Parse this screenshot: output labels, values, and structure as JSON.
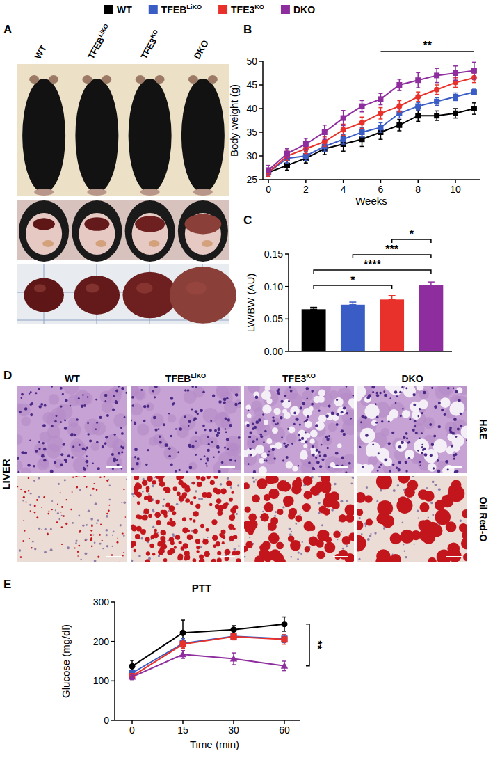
{
  "panels": [
    "A",
    "B",
    "C",
    "D",
    "E"
  ],
  "legend": [
    {
      "text": "WT",
      "color": "#000000"
    },
    {
      "text": "TFEB",
      "sup": "LiKO",
      "color": "#3a5cc5"
    },
    {
      "text": "TFE3",
      "sup": "KO",
      "color": "#e8312a"
    },
    {
      "text": "DKO",
      "color": "#8e2e9e"
    }
  ],
  "panel_a": {
    "columns": [
      {
        "text": "WT"
      },
      {
        "text": "TFEB",
        "sup": "LiKO"
      },
      {
        "text": "TFE3",
        "sup": "KO"
      },
      {
        "text": "DKO"
      }
    ]
  },
  "panel_d": {
    "tissue": "LIVER",
    "rows": [
      "H&E",
      "Oil Red-O"
    ],
    "columns": [
      {
        "text": "WT"
      },
      {
        "text": "TFEB",
        "sup": "LiKO"
      },
      {
        "text": "TFE3",
        "sup": "KO"
      },
      {
        "text": "DKO"
      }
    ]
  },
  "chart_data": [
    {
      "type": "line",
      "x_label": "Weeks",
      "y_label": "Body weight (g)",
      "x": [
        0,
        1,
        2,
        3,
        4,
        5,
        6,
        7,
        8,
        9,
        10,
        11
      ],
      "xlim": [
        -0.3,
        11.3
      ],
      "xticks": [
        0,
        2,
        4,
        6,
        8,
        10
      ],
      "ylim": [
        25,
        50
      ],
      "yticks": [
        25,
        30,
        35,
        40,
        45,
        50
      ],
      "series": [
        {
          "color": "#000000",
          "marker": "square",
          "values": [
            26.5,
            28,
            29.5,
            31.5,
            32.5,
            33.5,
            35,
            36.5,
            38.5,
            38.5,
            39,
            40
          ],
          "errors": [
            0.8,
            1,
            1,
            1.2,
            1.5,
            1.5,
            1.5,
            1.2,
            1.2,
            1,
            1,
            1.2
          ]
        },
        {
          "color": "#3a5cc5",
          "marker": "square",
          "values": [
            26.5,
            29.5,
            30,
            32,
            33.5,
            35,
            36,
            39,
            40.5,
            41.5,
            42.5,
            43.5
          ],
          "errors": [
            0.8,
            1,
            1,
            1,
            1,
            1,
            1,
            1,
            0.8,
            0.8,
            0.8,
            0.6
          ]
        },
        {
          "color": "#e8312a",
          "marker": "circle",
          "values": [
            26.5,
            30,
            31.5,
            33,
            35.5,
            37,
            39,
            40.5,
            42.5,
            44,
            45.5,
            46.5
          ],
          "errors": [
            0.8,
            1,
            1,
            1,
            1.2,
            1.2,
            1.2,
            1.2,
            1,
            1,
            1,
            1
          ]
        },
        {
          "color": "#8e2e9e",
          "marker": "square",
          "values": [
            27,
            30.5,
            32.5,
            35,
            38,
            40.5,
            42,
            45,
            46,
            47,
            47.5,
            48
          ],
          "errors": [
            1,
            1,
            1.2,
            1.5,
            1.6,
            1.2,
            1.2,
            1.2,
            1.6,
            1.5,
            1.5,
            1.8
          ]
        }
      ],
      "annotations": [
        {
          "text": "**",
          "x_start": 6,
          "x_end": 11
        }
      ]
    },
    {
      "type": "bar",
      "y_label": "LW/BW (AU)",
      "categories": [
        null,
        null,
        null,
        null
      ],
      "values": [
        0.065,
        0.072,
        0.08,
        0.102
      ],
      "errors": [
        0.003,
        0.004,
        0.006,
        0.005
      ],
      "colors": [
        "#000000",
        "#3a5cc5",
        "#e8312a",
        "#8e2e9e"
      ],
      "ylim": [
        0,
        0.15
      ],
      "yticks": [
        {
          "value": 0,
          "label": "0.00"
        },
        {
          "value": 0.05,
          "label": "0.05"
        },
        {
          "value": 0.1,
          "label": "0.10"
        },
        {
          "value": 0.15,
          "label": "0.15"
        }
      ],
      "tick_labels": "y",
      "comparisons": [
        {
          "text": "*",
          "from": 0,
          "to": 2
        },
        {
          "text": "****",
          "from": 0,
          "to": 3
        },
        {
          "text": "***",
          "from": 1,
          "to": 3
        },
        {
          "text": "*",
          "from": 2,
          "to": 3
        }
      ]
    },
    {
      "type": "line",
      "title": "PTT",
      "x_label": "Time (min)",
      "y_label": "Glucose (mg/dl)",
      "categories": [
        "0",
        "15",
        "30",
        "60"
      ],
      "ylim": [
        0,
        300
      ],
      "yticks": [
        0,
        100,
        200,
        300
      ],
      "series": [
        {
          "color": "#000000",
          "marker": "circle",
          "values": [
            137,
            222,
            230,
            244
          ],
          "errors": [
            15,
            32,
            10,
            18
          ]
        },
        {
          "color": "#3a5cc5",
          "marker": "square",
          "values": [
            120,
            195,
            213,
            207
          ],
          "errors": [
            6,
            12,
            8,
            10
          ]
        },
        {
          "color": "#e8312a",
          "marker": "square",
          "values": [
            112,
            193,
            212,
            205
          ],
          "errors": [
            6,
            10,
            8,
            12
          ]
        },
        {
          "color": "#8e2e9e",
          "marker": "triangle",
          "values": [
            110,
            167,
            156,
            138
          ],
          "errors": [
            7,
            10,
            15,
            12
          ]
        }
      ],
      "annotations": [
        {
          "text": "**",
          "series": [
            0,
            3
          ],
          "at": 3
        }
      ]
    }
  ]
}
